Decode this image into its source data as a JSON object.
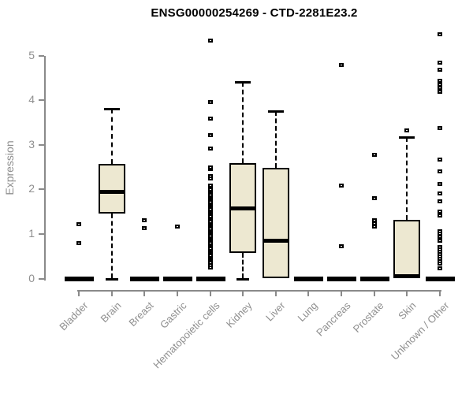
{
  "title": "ENSG00000254269 - CTD-2281E23.2",
  "y_axis": {
    "label": "Expression"
  },
  "chart_data": {
    "type": "boxplot",
    "title": "ENSG00000254269 - CTD-2281E23.2",
    "xlabel": "",
    "ylabel": "Expression",
    "ylim": [
      0,
      5.6
    ],
    "yticks": [
      0,
      1,
      2,
      3,
      4,
      5
    ],
    "grid": false,
    "legend": "none",
    "categories": [
      "Bladder",
      "Brain",
      "Breast",
      "Gastric",
      "Hematopoietic cells",
      "Kidney",
      "Liver",
      "Lung",
      "Pancreas",
      "Prostate",
      "Skin",
      "Unknown / Other"
    ],
    "series": [
      {
        "name": "Bladder",
        "q1": 0,
        "median": 0,
        "q3": 0,
        "whisker_low": 0,
        "whisker_high": 0,
        "outliers": [
          0.79,
          1.22
        ]
      },
      {
        "name": "Brain",
        "q1": 1.45,
        "median": 1.95,
        "q3": 2.57,
        "whisker_low": 0,
        "whisker_high": 3.8,
        "outliers": []
      },
      {
        "name": "Breast",
        "q1": 0,
        "median": 0,
        "q3": 0,
        "whisker_low": 0,
        "whisker_high": 0,
        "outliers": [
          1.13,
          1.3
        ]
      },
      {
        "name": "Gastric",
        "q1": 0,
        "median": 0,
        "q3": 0,
        "whisker_low": 0,
        "whisker_high": 0,
        "outliers": [
          1.17
        ]
      },
      {
        "name": "Hematopoietic cells",
        "q1": 0,
        "median": 0,
        "q3": 0,
        "whisker_low": 0,
        "whisker_high": 0,
        "outliers": [
          0.24,
          0.3,
          0.36,
          0.4,
          0.44,
          0.48,
          0.52,
          0.56,
          0.6,
          0.64,
          0.68,
          0.72,
          0.76,
          0.8,
          0.84,
          0.88,
          0.92,
          0.96,
          1.0,
          1.04,
          1.08,
          1.12,
          1.16,
          1.2,
          1.24,
          1.28,
          1.32,
          1.36,
          1.4,
          1.44,
          1.48,
          1.52,
          1.56,
          1.6,
          1.64,
          1.68,
          1.72,
          1.76,
          1.8,
          1.84,
          1.88,
          1.92,
          1.96,
          2.0,
          2.05,
          2.09,
          2.25,
          2.3,
          2.45,
          2.5,
          2.91,
          3.22,
          3.58,
          3.95,
          5.33
        ]
      },
      {
        "name": "Kidney",
        "q1": 0.58,
        "median": 1.57,
        "q3": 2.59,
        "whisker_low": 0,
        "whisker_high": 4.4,
        "outliers": []
      },
      {
        "name": "Liver",
        "q1": 0,
        "median": 0.84,
        "q3": 2.49,
        "whisker_low": 0,
        "whisker_high": 3.75,
        "outliers": []
      },
      {
        "name": "Lung",
        "q1": 0,
        "median": 0,
        "q3": 0,
        "whisker_low": 0,
        "whisker_high": 0,
        "outliers": []
      },
      {
        "name": "Pancreas",
        "q1": 0,
        "median": 0,
        "q3": 0,
        "whisker_low": 0,
        "whisker_high": 0,
        "outliers": [
          0.73,
          2.08,
          4.78
        ]
      },
      {
        "name": "Prostate",
        "q1": 0,
        "median": 0,
        "q3": 0,
        "whisker_low": 0,
        "whisker_high": 0,
        "outliers": [
          1.16,
          1.23,
          1.3,
          1.81,
          2.77
        ]
      },
      {
        "name": "Skin",
        "q1": 0,
        "median": 0,
        "q3": 1.31,
        "whisker_low": 0,
        "whisker_high": 3.17,
        "outliers": [
          3.33
        ]
      },
      {
        "name": "Unknown / Other",
        "q1": 0,
        "median": 0,
        "q3": 0,
        "whisker_low": 0,
        "whisker_high": 0,
        "outliers": [
          0.23,
          0.33,
          0.38,
          0.44,
          0.5,
          0.55,
          0.6,
          0.66,
          0.7,
          0.85,
          0.93,
          1.0,
          1.06,
          1.42,
          1.5,
          1.74,
          1.9,
          2.12,
          2.4,
          2.66,
          3.38,
          4.18,
          4.27,
          4.35,
          4.44,
          4.69,
          4.84,
          5.48
        ]
      }
    ],
    "colors": {
      "box_fill": "#EDE8D1",
      "box_border": "#000000",
      "median": "#000000",
      "whisker": "#000000",
      "outlier_border": "#000000",
      "outlier_fill": "#ffffff",
      "axis": "#8a8a8a",
      "tick_text": "#8f8f8f",
      "title_text": "#000000",
      "background": "#ffffff"
    }
  }
}
